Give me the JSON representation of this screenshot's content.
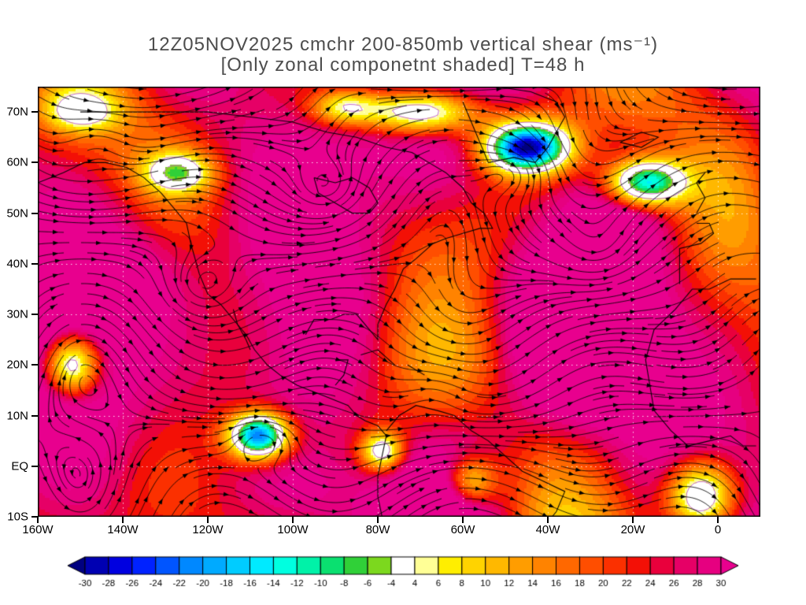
{
  "chart_data": {
    "type": "heatmap",
    "title": "12Z05NOV2025 cmchr 200-850mb vertical shear (ms⁻¹)",
    "subtitle": "[Only zonal componetnt shaded] T=48 h",
    "valid_time": "12Z05NOV2025",
    "model": "cmchr",
    "layer": "200-850mb",
    "variable": "vertical shear",
    "units": "ms⁻¹",
    "forecast_label": "T=48 h",
    "shaded_component": "zonal",
    "overlay": "black shear-vector streamlines with arrowheads; thin violet contour lines",
    "lon_min": -160,
    "lon_max": 10,
    "lat_min": -10,
    "lat_max": 75,
    "x_ticks": [
      {
        "value": -160,
        "label": "160W"
      },
      {
        "value": -140,
        "label": "140W"
      },
      {
        "value": -120,
        "label": "120W"
      },
      {
        "value": -100,
        "label": "100W"
      },
      {
        "value": -80,
        "label": "80W"
      },
      {
        "value": -60,
        "label": "60W"
      },
      {
        "value": -40,
        "label": "40W"
      },
      {
        "value": -20,
        "label": "20W"
      },
      {
        "value": 0,
        "label": "0"
      }
    ],
    "y_ticks": [
      {
        "value": 70,
        "label": "70N"
      },
      {
        "value": 60,
        "label": "60N"
      },
      {
        "value": 50,
        "label": "50N"
      },
      {
        "value": 40,
        "label": "40N"
      },
      {
        "value": 30,
        "label": "30N"
      },
      {
        "value": 20,
        "label": "20N"
      },
      {
        "value": 10,
        "label": "10N"
      },
      {
        "value": 0,
        "label": "EQ"
      },
      {
        "value": -10,
        "label": "10S"
      }
    ],
    "colorbar": {
      "levels": [
        -30,
        -28,
        -26,
        -24,
        -22,
        -20,
        -18,
        -16,
        -14,
        -12,
        -10,
        -8,
        -6,
        -4,
        4,
        6,
        8,
        10,
        12,
        14,
        16,
        18,
        20,
        22,
        24,
        26,
        28,
        30
      ],
      "colors": [
        "#000080",
        "#0000b2",
        "#0000e0",
        "#0022ff",
        "#0055ff",
        "#0088ff",
        "#00aaff",
        "#00ccff",
        "#00eaff",
        "#00ffe0",
        "#00f2a8",
        "#0ae070",
        "#30d038",
        "#7cd81e",
        "#ffffff",
        "#ffff96",
        "#ffee00",
        "#ffd300",
        "#ffb800",
        "#ff9d00",
        "#ff8300",
        "#ff6800",
        "#ff4e00",
        "#fb3000",
        "#f31006",
        "#e9003c",
        "#e60066",
        "#e60080",
        "#e8008e"
      ]
    },
    "styles": {
      "streamline_color": "#000000",
      "contour_color": "#bf5fbf",
      "grid_color": "#ffffff",
      "frame_color": "#000000",
      "title_color": "#4d4d4d",
      "label_color": "#000000",
      "background": "#ffffff"
    },
    "field_summary": [
      "Shading shows the zonal (u) component of 200-850mb vertical shear in ms⁻¹",
      "Magenta (26 to 30+ ms⁻¹) dominates midlatitudes and the subtropics across the domain",
      "Orange and yellow bands (6-20 ms⁻¹) thread through high latitudes and the deep tropics",
      "Green/cyan weak-or-easterly shear pockets near 60-65N over the North Atlantic, near 55N/15W, near 5-10N/108W, 20N at the west edge, and the far southeast corner",
      "White areas mark weak shear between -4 and 4 ms⁻¹; black streamlines with arrowheads show shear-vector flow"
    ]
  }
}
